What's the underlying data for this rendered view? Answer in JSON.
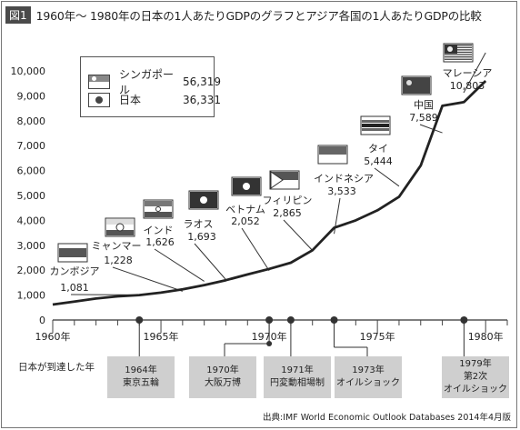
{
  "figure": {
    "badge": "図1",
    "title": "1960年～ 1980年の日本の1人あたりGDPのグラフとアジア各国の1人あたりGDPの比較",
    "source": "出典:IMF World Economic Outlook Databases 2014年4月版",
    "timeline_label": "日本が到達した年"
  },
  "legend": {
    "items": [
      {
        "name": "シンガポール",
        "value": "56,319",
        "flag": "singapore-flag-icon"
      },
      {
        "name": "日本",
        "value": "36,331",
        "flag": "japan-flag-icon"
      }
    ]
  },
  "chart_data": {
    "type": "line",
    "xlim": [
      1960,
      1981
    ],
    "ylim": [
      0,
      10000
    ],
    "x_ticks": [
      1960,
      1965,
      1970,
      1975,
      1980
    ],
    "x_tick_labels": [
      "1960年",
      "1965年",
      "1970年",
      "1975年",
      "1980年"
    ],
    "y_ticks": [
      0,
      1000,
      2000,
      3000,
      4000,
      5000,
      6000,
      7000,
      8000,
      9000,
      10000
    ],
    "y_tick_labels": [
      "0",
      "1,000",
      "2,000",
      "3,000",
      "4,000",
      "5,000",
      "6,000",
      "7,000",
      "8,000",
      "9,000",
      "10,000"
    ],
    "grid": false,
    "series": [
      {
        "x": [
          1960,
          1961,
          1962,
          1963,
          1964,
          1965,
          1966,
          1967,
          1968,
          1969,
          1970,
          1971,
          1972,
          1973,
          1974,
          1975,
          1976,
          1977,
          1978,
          1979,
          1980
        ],
        "y": [
          620,
          740,
          860,
          950,
          1000,
          1100,
          1230,
          1400,
          1600,
          1830,
          2050,
          2300,
          2800,
          3700,
          4000,
          4400,
          4950,
          6200,
          8600,
          8750,
          9600
        ]
      }
    ],
    "comparisons": [
      {
        "country": "カンボジア",
        "value": "1,081",
        "year": 1964,
        "flag": "cambodia-flag-icon"
      },
      {
        "country": "ミャンマー",
        "value": "1,228",
        "year": 1966,
        "flag": "myanmar-flag-icon"
      },
      {
        "country": "インド",
        "value": "1,626",
        "year": 1967,
        "flag": "india-flag-icon"
      },
      {
        "country": "ラオス",
        "value": "1,693",
        "year": 1968,
        "flag": "laos-flag-icon"
      },
      {
        "country": "ベトナム",
        "value": "2,052",
        "year": 1970,
        "flag": "vietnam-flag-icon"
      },
      {
        "country": "フィリピン",
        "value": "2,865",
        "year": 1972,
        "flag": "philippines-flag-icon"
      },
      {
        "country": "インドネシア",
        "value": "3,533",
        "year": 1973,
        "flag": "indonesia-flag-icon"
      },
      {
        "country": "タイ",
        "value": "5,444",
        "year": 1976,
        "flag": "thailand-flag-icon"
      },
      {
        "country": "中国",
        "value": "7,589",
        "year": 1978,
        "flag": "china-flag-icon"
      },
      {
        "country": "マレーシア",
        "value": "10,803",
        "year": 1980,
        "flag": "malaysia-flag-icon"
      }
    ]
  },
  "timeline_events": [
    {
      "year": 1964,
      "line1": "1964年",
      "line2": "東京五輪"
    },
    {
      "year": 1970,
      "line1": "1970年",
      "line2": "大阪万博"
    },
    {
      "year": 1971,
      "line1": "1971年",
      "line2": "円変動相場制"
    },
    {
      "year": 1973,
      "line1": "1973年",
      "line2": "オイルショック"
    },
    {
      "year": 1979,
      "line1": "1979年",
      "line2": "第2次",
      "line3": "オイルショック"
    }
  ]
}
